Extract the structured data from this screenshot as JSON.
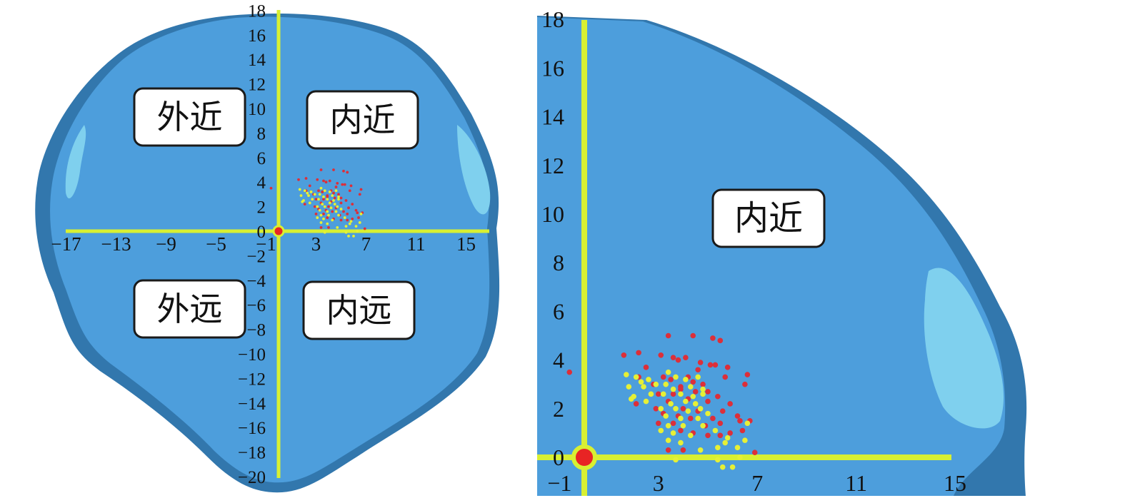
{
  "colors": {
    "shape_fill": "#4d9edc",
    "shape_edge": "#3277ad",
    "shape_highlight": "#7fd0ee",
    "axis": "#d8f032",
    "origin": "#e82424",
    "series_red": "#dc2f3a",
    "series_yellow": "#e6f036"
  },
  "chart_data": [
    {
      "type": "scatter",
      "panel": "left",
      "x_ticks": [
        "−17",
        "−13",
        "−9",
        "−5",
        "−1",
        "3",
        "7",
        "11",
        "15"
      ],
      "y_ticks": [
        "18",
        "16",
        "14",
        "12",
        "10",
        "8",
        "6",
        "4",
        "2",
        "0",
        "−2",
        "−4",
        "−6",
        "−8",
        "−10",
        "−12",
        "−14",
        "−16",
        "−18",
        "−20"
      ],
      "xlim": [
        -17,
        15
      ],
      "ylim": [
        -20,
        18
      ],
      "quadrant_labels": [
        "外近",
        "内近",
        "外远",
        "内远"
      ],
      "origin": [
        0,
        0
      ]
    },
    {
      "type": "scatter",
      "panel": "right",
      "x_ticks": [
        "−1",
        "3",
        "7",
        "11",
        "15"
      ],
      "y_ticks": [
        "18",
        "16",
        "14",
        "12",
        "10",
        "8",
        "6",
        "4",
        "2",
        "0"
      ],
      "xlim": [
        -1,
        15
      ],
      "ylim": [
        0,
        18
      ],
      "quadrant_labels": [
        "内近"
      ],
      "origin": [
        0,
        0
      ],
      "series": [
        {
          "color": "red",
          "points": [
            [
              -0.6,
              3.5
            ],
            [
              3.4,
              5.0
            ],
            [
              4.4,
              5.0
            ],
            [
              5.2,
              4.9
            ],
            [
              5.5,
              4.8
            ],
            [
              2.2,
              4.3
            ],
            [
              1.6,
              4.2
            ],
            [
              3.1,
              4.2
            ],
            [
              3.6,
              4.1
            ],
            [
              3.8,
              4.0
            ],
            [
              4.1,
              4.1
            ],
            [
              4.7,
              3.9
            ],
            [
              5.1,
              3.8
            ],
            [
              5.3,
              3.8
            ],
            [
              2.5,
              3.7
            ],
            [
              4.6,
              3.6
            ],
            [
              5.8,
              3.7
            ],
            [
              6.6,
              3.4
            ],
            [
              2.2,
              3.3
            ],
            [
              3.2,
              3.3
            ],
            [
              3.5,
              3.2
            ],
            [
              4.2,
              3.3
            ],
            [
              4.4,
              3.1
            ],
            [
              5.7,
              3.3
            ],
            [
              2.8,
              3.0
            ],
            [
              3.9,
              2.9
            ],
            [
              4.8,
              3.0
            ],
            [
              6.5,
              3.0
            ],
            [
              3.0,
              2.6
            ],
            [
              3.6,
              2.6
            ],
            [
              3.9,
              2.8
            ],
            [
              4.5,
              2.7
            ],
            [
              5.0,
              2.7
            ],
            [
              5.4,
              2.5
            ],
            [
              3.4,
              2.3
            ],
            [
              4.2,
              2.4
            ],
            [
              5.0,
              2.3
            ],
            [
              5.9,
              2.2
            ],
            [
              2.1,
              2.2
            ],
            [
              2.9,
              2.0
            ],
            [
              4.0,
              2.0
            ],
            [
              4.6,
              1.9
            ],
            [
              5.6,
              1.9
            ],
            [
              3.2,
              1.8
            ],
            [
              3.8,
              1.7
            ],
            [
              4.3,
              1.6
            ],
            [
              5.2,
              1.6
            ],
            [
              6.2,
              1.7
            ],
            [
              3.0,
              1.4
            ],
            [
              3.6,
              1.4
            ],
            [
              4.9,
              1.3
            ],
            [
              5.5,
              1.4
            ],
            [
              6.3,
              1.5
            ],
            [
              6.7,
              1.5
            ],
            [
              3.9,
              1.1
            ],
            [
              4.4,
              1.0
            ],
            [
              5.0,
              0.9
            ],
            [
              5.9,
              1.0
            ],
            [
              6.4,
              1.1
            ],
            [
              5.5,
              0.9
            ],
            [
              3.4,
              0.3
            ],
            [
              4.0,
              0.3
            ],
            [
              6.9,
              0.2
            ]
          ]
        },
        {
          "color": "yellow",
          "points": [
            [
              1.7,
              3.4
            ],
            [
              2.1,
              3.3
            ],
            [
              2.6,
              3.2
            ],
            [
              3.4,
              3.5
            ],
            [
              3.7,
              3.3
            ],
            [
              4.1,
              3.2
            ],
            [
              4.6,
              3.3
            ],
            [
              2.3,
              3.1
            ],
            [
              2.9,
              3.0
            ],
            [
              3.3,
              3.0
            ],
            [
              1.8,
              2.9
            ],
            [
              2.4,
              2.9
            ],
            [
              3.6,
              2.8
            ],
            [
              4.3,
              2.9
            ],
            [
              4.8,
              2.8
            ],
            [
              2.0,
              2.5
            ],
            [
              2.7,
              2.6
            ],
            [
              3.2,
              2.6
            ],
            [
              3.9,
              2.6
            ],
            [
              4.4,
              2.5
            ],
            [
              4.8,
              2.6
            ],
            [
              1.9,
              2.4
            ],
            [
              2.5,
              2.3
            ],
            [
              3.5,
              2.2
            ],
            [
              4.1,
              2.3
            ],
            [
              4.5,
              2.2
            ],
            [
              3.1,
              2.0
            ],
            [
              3.7,
              2.0
            ],
            [
              4.2,
              1.9
            ],
            [
              4.7,
              2.0
            ],
            [
              3.3,
              1.7
            ],
            [
              3.9,
              1.6
            ],
            [
              4.6,
              1.6
            ],
            [
              5.0,
              1.8
            ],
            [
              6.6,
              1.4
            ],
            [
              3.4,
              1.3
            ],
            [
              4.0,
              1.3
            ],
            [
              4.8,
              1.3
            ],
            [
              3.1,
              1.1
            ],
            [
              3.6,
              1.0
            ],
            [
              4.3,
              0.9
            ],
            [
              5.3,
              1.1
            ],
            [
              5.8,
              0.8
            ],
            [
              3.4,
              0.7
            ],
            [
              3.9,
              0.6
            ],
            [
              5.7,
              0.6
            ],
            [
              6.5,
              0.7
            ],
            [
              4.7,
              0.3
            ],
            [
              5.4,
              0.4
            ],
            [
              6.2,
              0.4
            ],
            [
              3.7,
              -0.1
            ],
            [
              5.4,
              -0.1
            ],
            [
              6.3,
              0.0
            ],
            [
              5.6,
              -0.4
            ],
            [
              6.0,
              -0.4
            ]
          ]
        }
      ]
    }
  ]
}
